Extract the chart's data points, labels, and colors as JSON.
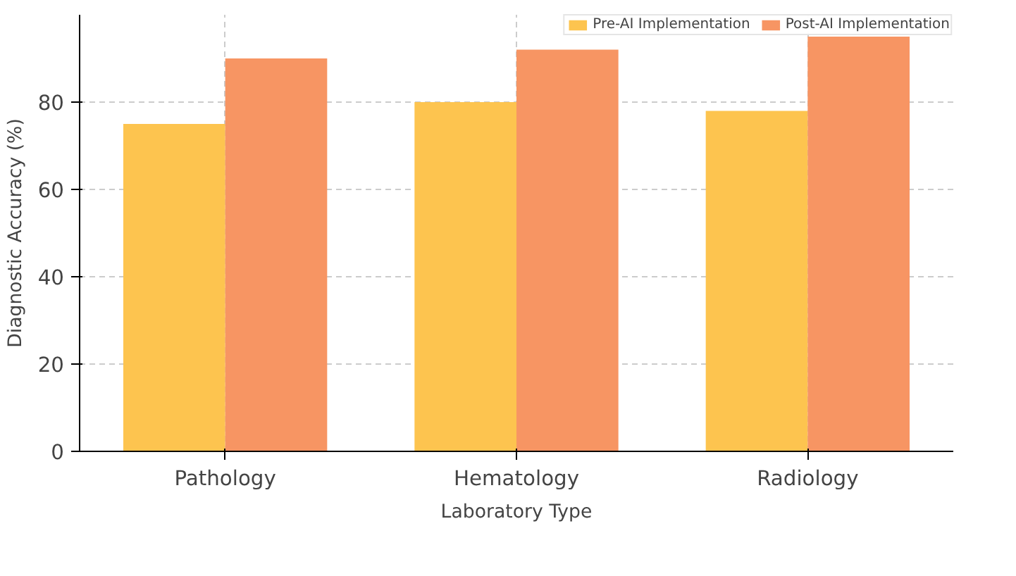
{
  "chart_data": {
    "type": "bar",
    "xlabel": "Laboratory Type",
    "ylabel": "Diagnostic Accuracy (%)",
    "categories": [
      "Pathology",
      "Hematology",
      "Radiology"
    ],
    "series": [
      {
        "name": "Pre-AI Implementation",
        "color": "#fdc44f",
        "values": [
          75,
          80,
          78
        ]
      },
      {
        "name": "Post-AI Implementation",
        "color": "#f79563",
        "values": [
          90,
          92,
          95
        ]
      }
    ],
    "ylim": [
      0,
      100
    ],
    "yticks": [
      0,
      20,
      40,
      60,
      80
    ],
    "grid": true,
    "legend": "top right"
  }
}
